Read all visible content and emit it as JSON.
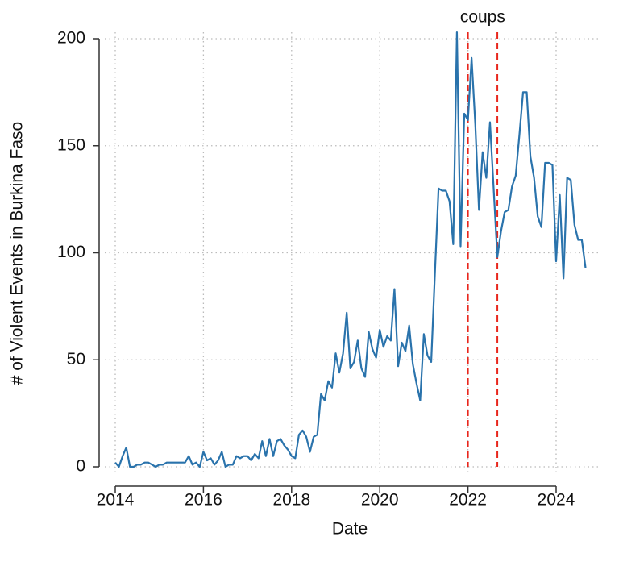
{
  "chart_data": {
    "type": "line",
    "x_label": "Date",
    "y_label": "# of Violent Events in Burkina Faso",
    "annotation": "coups",
    "vlines": [
      2022,
      2022.667
    ],
    "vline_color": "#e8261c",
    "grid": true,
    "xlim": [
      2014,
      2024
    ],
    "xticks": [
      2014,
      2016,
      2018,
      2020,
      2022,
      2024
    ],
    "ylim": [
      0,
      200
    ],
    "yticks": [
      0,
      50,
      100,
      150,
      200
    ],
    "x": [
      2014,
      2014.083,
      2014.167,
      2014.25,
      2014.333,
      2014.417,
      2014.5,
      2014.583,
      2014.667,
      2014.75,
      2014.833,
      2014.917,
      2015,
      2015.083,
      2015.167,
      2015.25,
      2015.333,
      2015.417,
      2015.5,
      2015.583,
      2015.667,
      2015.75,
      2015.833,
      2015.917,
      2016,
      2016.083,
      2016.167,
      2016.25,
      2016.333,
      2016.417,
      2016.5,
      2016.583,
      2016.667,
      2016.75,
      2016.833,
      2016.917,
      2017,
      2017.083,
      2017.167,
      2017.25,
      2017.333,
      2017.417,
      2017.5,
      2017.583,
      2017.667,
      2017.75,
      2017.833,
      2017.917,
      2018,
      2018.083,
      2018.167,
      2018.25,
      2018.333,
      2018.417,
      2018.5,
      2018.583,
      2018.667,
      2018.75,
      2018.833,
      2018.917,
      2019,
      2019.083,
      2019.167,
      2019.25,
      2019.333,
      2019.417,
      2019.5,
      2019.583,
      2019.667,
      2019.75,
      2019.833,
      2019.917,
      2020,
      2020.083,
      2020.167,
      2020.25,
      2020.333,
      2020.417,
      2020.5,
      2020.583,
      2020.667,
      2020.75,
      2020.833,
      2020.917,
      2021,
      2021.083,
      2021.167,
      2021.25,
      2021.333,
      2021.417,
      2021.5,
      2021.583,
      2021.667,
      2021.75,
      2021.833,
      2021.917,
      2022,
      2022.083,
      2022.167,
      2022.25,
      2022.333,
      2022.417,
      2022.5,
      2022.583,
      2022.667,
      2022.75,
      2022.833,
      2022.917,
      2023,
      2023.083,
      2023.167,
      2023.25,
      2023.333,
      2023.417,
      2023.5,
      2023.583,
      2023.667,
      2023.75,
      2023.833,
      2023.917,
      2024,
      2024.083,
      2024.167,
      2024.25,
      2024.333,
      2024.417,
      2024.5,
      2024.583,
      2024.667
    ],
    "series": [
      {
        "color": "#2a73ac",
        "values": [
          2,
          0,
          5,
          9,
          0,
          0,
          1,
          1,
          2,
          2,
          1,
          0,
          1,
          1,
          2,
          2,
          2,
          2,
          2,
          2,
          5,
          1,
          2,
          0,
          7,
          3,
          4,
          1,
          3,
          7,
          0,
          1,
          1,
          5,
          4,
          5,
          5,
          3,
          6,
          4,
          12,
          5,
          13,
          5,
          12,
          13,
          10,
          8,
          5,
          4,
          15,
          17,
          14,
          7,
          14,
          15,
          34,
          31,
          40,
          37,
          53,
          44,
          53,
          72,
          46,
          49,
          59,
          46,
          42,
          63,
          55,
          51,
          64,
          56,
          61,
          59,
          83,
          47,
          58,
          54,
          66,
          48,
          39,
          31,
          62,
          52,
          49,
          90,
          130,
          129,
          129,
          124,
          104,
          203,
          103,
          165,
          162,
          191,
          160,
          120,
          147,
          135,
          161,
          130,
          98,
          110,
          119,
          120,
          131,
          136,
          155,
          175,
          175,
          145,
          135,
          117,
          112,
          142,
          142,
          141,
          96,
          127,
          88,
          135,
          134,
          113,
          106,
          106,
          93
        ]
      }
    ]
  }
}
